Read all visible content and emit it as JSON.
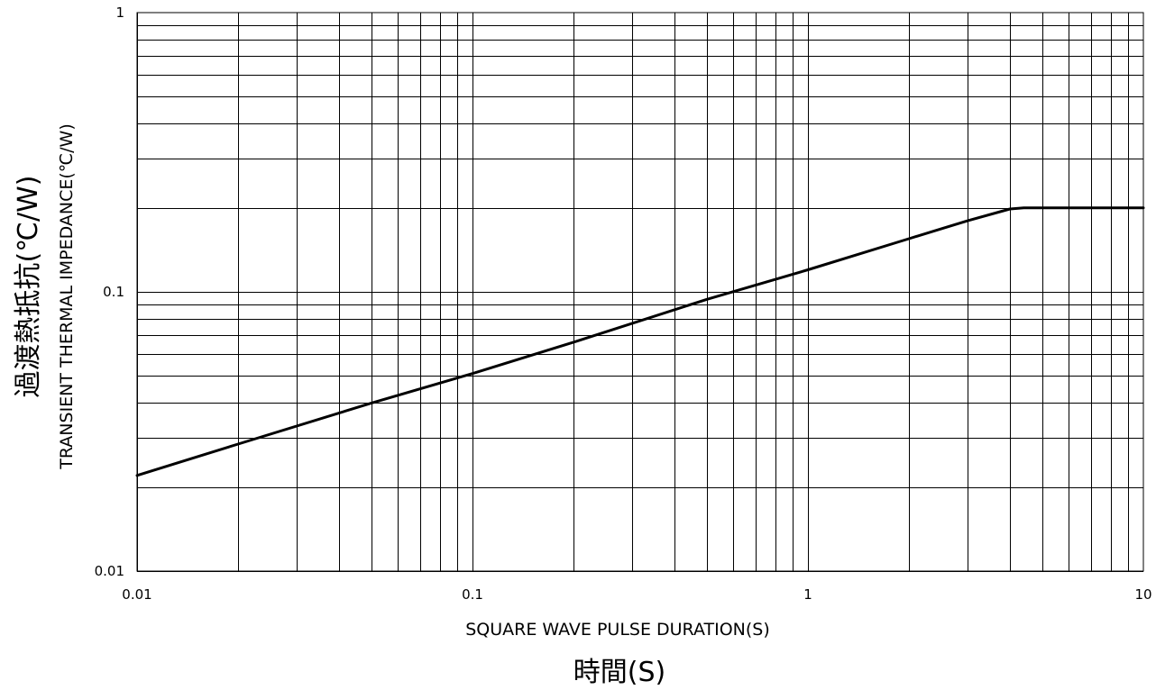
{
  "chart_data": {
    "type": "line",
    "x_scale": "log",
    "y_scale": "log",
    "xlim": [
      0.01,
      10
    ],
    "ylim": [
      0.01,
      1
    ],
    "grid": true,
    "x_ticks": [
      {
        "value": 0.01,
        "label": "0.01"
      },
      {
        "value": 0.1,
        "label": "0.1"
      },
      {
        "value": 1,
        "label": "1"
      },
      {
        "value": 10,
        "label": "10"
      }
    ],
    "y_ticks": [
      {
        "value": 0.01,
        "label": "0.01"
      },
      {
        "value": 0.1,
        "label": "0.1"
      },
      {
        "value": 1,
        "label": "1"
      }
    ],
    "xlabel": "SQUARE WAVE PULSE DURATION(S)",
    "xlabel_jp": "時間(S)",
    "ylabel": "TRANSIENT THERMAL IMPEDANCE(℃/W)",
    "ylabel_jp": "過渡熱抵抗(℃/W)",
    "series": [
      {
        "x": [
          0.01,
          0.02,
          0.05,
          0.1,
          0.2,
          0.5,
          1,
          2,
          3,
          4,
          4.4,
          5,
          10
        ],
        "y": [
          0.022,
          0.0285,
          0.04,
          0.051,
          0.066,
          0.094,
          0.12,
          0.155,
          0.18,
          0.198,
          0.2,
          0.2,
          0.2
        ]
      }
    ],
    "colors": {
      "line": "#000000",
      "grid": "#000000",
      "background": "#ffffff"
    }
  }
}
